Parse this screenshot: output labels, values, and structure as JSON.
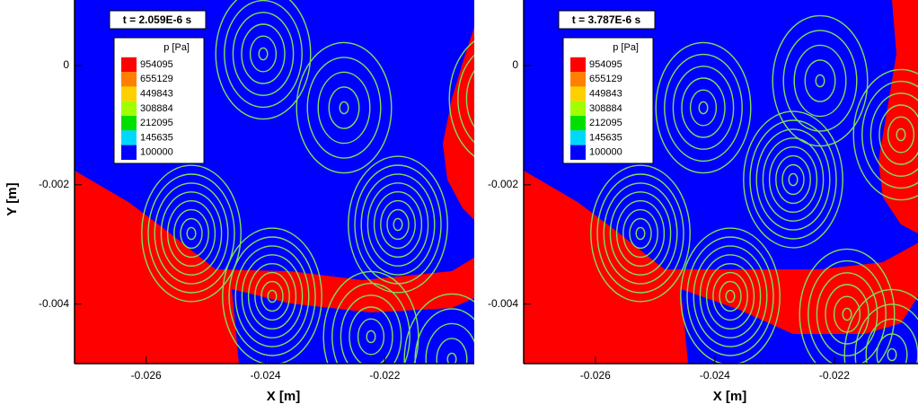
{
  "chart_data": [
    {
      "type": "contour",
      "annotation": "t = 2.059E-6 s",
      "xlabel": "X [m]",
      "ylabel": "Y [m]",
      "xlim": [
        -0.0272,
        -0.0205
      ],
      "ylim": [
        -0.005,
        0.0011
      ],
      "xticks": [
        -0.026,
        -0.024,
        -0.022
      ],
      "yticks": [
        0,
        -0.002,
        -0.004
      ],
      "colorbar": {
        "title": "p [Pa]",
        "levels": [
          954095,
          655129,
          449843,
          308884,
          212095,
          145635,
          100000
        ],
        "colors": [
          "#ff0000",
          "#ff8000",
          "#ffd000",
          "#a0ff00",
          "#00e000",
          "#00d8ff",
          "#0000ff"
        ]
      }
    },
    {
      "type": "contour",
      "annotation": "t = 3.787E-6 s",
      "xlabel": "X [m]",
      "xlim": [
        -0.0272,
        -0.0206
      ],
      "ylim": [
        -0.005,
        0.0011
      ],
      "xticks": [
        -0.026,
        -0.024,
        -0.022
      ],
      "yticks": [
        0,
        -0.002,
        -0.004
      ],
      "colorbar": {
        "title": "p [Pa]",
        "levels": [
          954095,
          655129,
          449843,
          308884,
          212095,
          145635,
          100000
        ],
        "colors": [
          "#ff0000",
          "#ff8000",
          "#ffd000",
          "#a0ff00",
          "#00e000",
          "#00d8ff",
          "#0000ff"
        ]
      }
    }
  ]
}
